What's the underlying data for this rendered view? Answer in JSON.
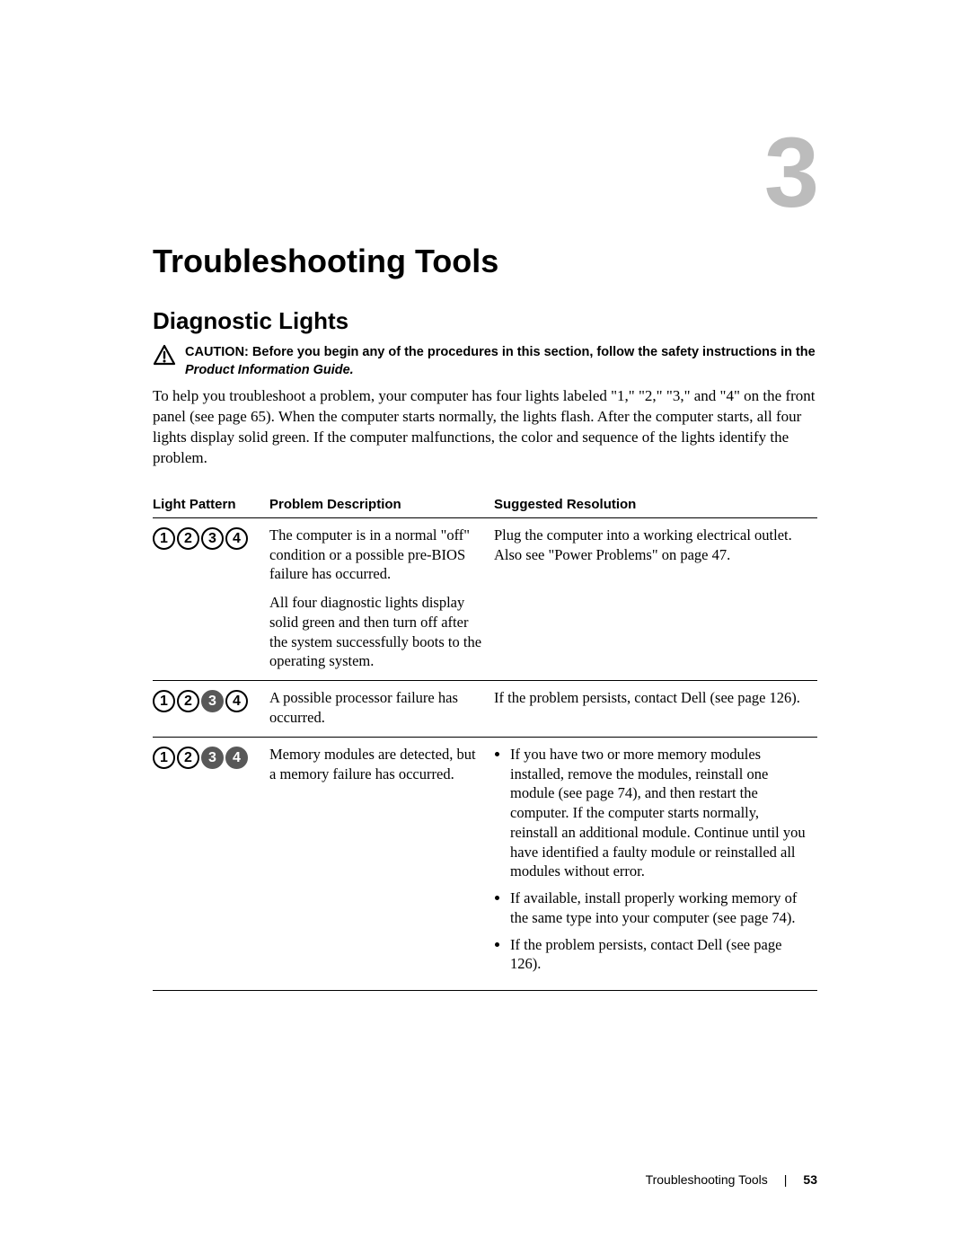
{
  "chapter": {
    "number": "3",
    "title": "Troubleshooting Tools"
  },
  "section": {
    "title": "Diagnostic Lights"
  },
  "caution": {
    "label": "CAUTION:",
    "text": "Before you begin any of the procedures in this section, follow the safety instructions in the ",
    "em": "Product Information Guide.",
    "icon_stroke": "#000000"
  },
  "intro": "To help you troubleshoot a problem, your computer has four lights labeled \"1,\" \"2,\" \"3,\" and \"4\" on the front panel (see page 65). When the computer starts normally, the lights flash. After the computer starts, all four lights display solid green. If the computer malfunctions, the color and sequence of the lights identify the problem.",
  "table": {
    "headers": {
      "pattern": "Light Pattern",
      "problem": "Problem Description",
      "resolution": "Suggested Resolution"
    },
    "rows": [
      {
        "lights": [
          false,
          false,
          false,
          false
        ],
        "problem_p1": "The computer is in a normal \"off\" condition or a possible pre-BIOS failure has occurred.",
        "problem_p2": "All four diagnostic lights display solid green and then turn off after the system successfully boots to the operating system.",
        "resolution_text": "Plug the computer into a working electrical outlet. Also see \"Power Problems\" on page 47."
      },
      {
        "lights": [
          false,
          false,
          true,
          false
        ],
        "problem_p1": "A possible processor failure has occurred.",
        "resolution_text": "If the problem persists, contact Dell (see page 126)."
      },
      {
        "lights": [
          false,
          false,
          true,
          true
        ],
        "problem_p1": "Memory modules are detected, but a memory failure has occurred.",
        "resolution_list": [
          "If you have two or more memory modules installed, remove the modules, reinstall one module (see page 74), and then restart the computer. If the computer starts normally, reinstall an additional module. Continue until you have identified a faulty module or reinstalled all modules without error.",
          "If available, install properly working memory of the same type into your computer (see page 74).",
          "If the problem persists, contact Dell (see page 126)."
        ]
      }
    ],
    "light_on_bg": "#585858",
    "light_on_fg": "#ffffff",
    "light_off_bg": "#ffffff",
    "light_off_fg": "#000000",
    "light_border": "#000000"
  },
  "footer": {
    "section": "Troubleshooting Tools",
    "page": "53"
  }
}
